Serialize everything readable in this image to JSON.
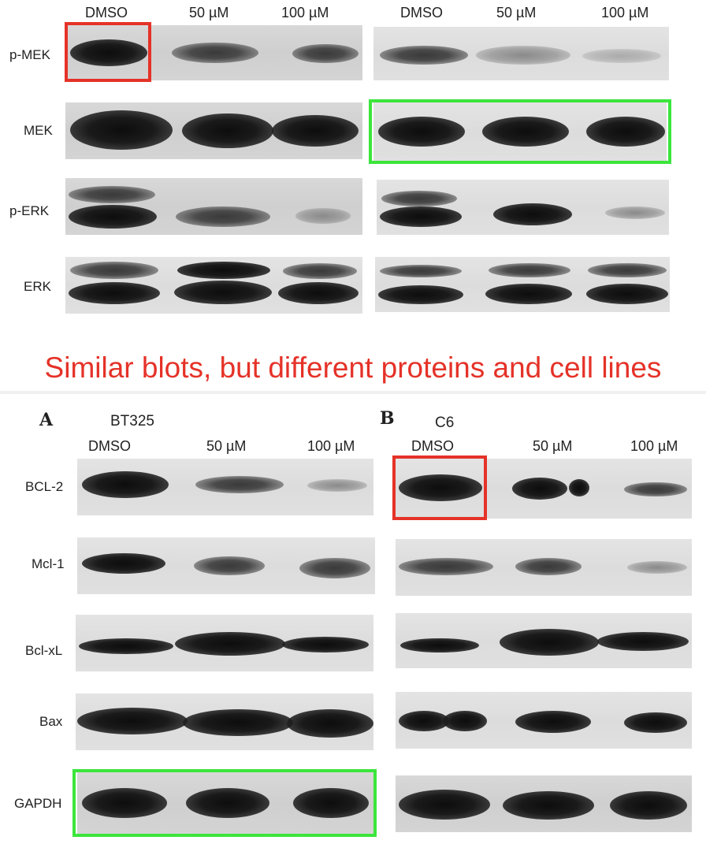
{
  "top": {
    "lanes_left": [
      "DMSO",
      "50 µM",
      "100 µM"
    ],
    "lanes_right": [
      "DMSO",
      "50 µM",
      "100 µM"
    ],
    "rows": [
      "p-MEK",
      "MEK",
      "p-ERK",
      "ERK"
    ]
  },
  "caption": "Similar blots, but different proteins and cell lines",
  "bottom": {
    "panel_a": {
      "letter": "A",
      "cell_line": "BT325",
      "lanes": [
        "DMSO",
        "50 µM",
        "100 µM"
      ]
    },
    "panel_b": {
      "letter": "B",
      "cell_line": "C6",
      "lanes": [
        "DMSO",
        "50 µM",
        "100 µM"
      ]
    },
    "rows": [
      "BCL-2",
      "Mcl-1",
      "Bcl-xL",
      "Bax",
      "GAPDH"
    ]
  },
  "colors": {
    "red_box": "#e53228",
    "green_box": "#3ce53c",
    "caption": "#e53228"
  }
}
